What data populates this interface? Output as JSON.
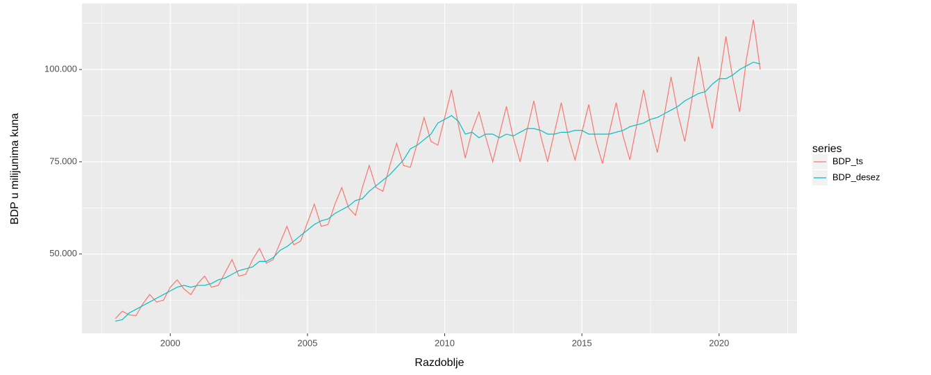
{
  "chart_data": {
    "type": "line",
    "xlabel": "Razdoblje",
    "ylabel": "BDP u milijunima kuna",
    "legend_title": "series",
    "legend": "right",
    "grid": true,
    "xlim": [
      1996.78,
      2022.84
    ],
    "ylim": [
      28500,
      117900
    ],
    "xticks": [
      2000,
      2005,
      2010,
      2015,
      2020
    ],
    "minor_xticks": [
      1997.5,
      2002.5,
      2007.5,
      2012.5,
      2017.5,
      2022.5
    ],
    "yticks": [
      {
        "value": 50000,
        "label": "50.000"
      },
      {
        "value": 75000,
        "label": "75.000"
      },
      {
        "value": 100000,
        "label": "100.000"
      }
    ],
    "minor_yticks": [
      37500,
      62500,
      87500,
      112500
    ],
    "x": [
      1998,
      1998.25,
      1998.5,
      1998.75,
      1999,
      1999.25,
      1999.5,
      1999.75,
      2000,
      2000.25,
      2000.5,
      2000.75,
      2001,
      2001.25,
      2001.5,
      2001.75,
      2002,
      2002.25,
      2002.5,
      2002.75,
      2003,
      2003.25,
      2003.5,
      2003.75,
      2004,
      2004.25,
      2004.5,
      2004.75,
      2005,
      2005.25,
      2005.5,
      2005.75,
      2006,
      2006.25,
      2006.5,
      2006.75,
      2007,
      2007.25,
      2007.5,
      2007.75,
      2008,
      2008.25,
      2008.5,
      2008.75,
      2009,
      2009.25,
      2009.5,
      2009.75,
      2010,
      2010.25,
      2010.5,
      2010.75,
      2011,
      2011.25,
      2011.5,
      2011.75,
      2012,
      2012.25,
      2012.5,
      2012.75,
      2013,
      2013.25,
      2013.5,
      2013.75,
      2014,
      2014.25,
      2014.5,
      2014.75,
      2015,
      2015.25,
      2015.5,
      2015.75,
      2016,
      2016.25,
      2016.5,
      2016.75,
      2017,
      2017.25,
      2017.5,
      2017.75,
      2018,
      2018.25,
      2018.5,
      2018.75,
      2019,
      2019.25,
      2019.5,
      2019.75,
      2020,
      2020.25,
      2020.5,
      2020.75,
      2021,
      2021.25,
      2021.5
    ],
    "series": [
      {
        "name": "BDP_ts",
        "color": "#F8766D",
        "values": [
          32500,
          34500,
          33500,
          33300,
          36500,
          39000,
          37000,
          37500,
          41000,
          43000,
          40500,
          39000,
          42000,
          44000,
          41000,
          41500,
          45000,
          48500,
          44000,
          44500,
          48500,
          51500,
          47500,
          48500,
          53000,
          57500,
          52500,
          53500,
          58500,
          63500,
          57500,
          58000,
          63500,
          68000,
          62500,
          60500,
          68000,
          74000,
          68000,
          67000,
          74000,
          80000,
          74000,
          73500,
          80000,
          87000,
          80500,
          79500,
          87000,
          94500,
          85000,
          76000,
          83500,
          88500,
          81500,
          75000,
          82500,
          90000,
          81500,
          75000,
          83500,
          91500,
          82000,
          75000,
          83000,
          91000,
          82000,
          75500,
          83000,
          90500,
          81000,
          74500,
          83000,
          91000,
          82000,
          75500,
          85000,
          94500,
          85000,
          77500,
          87500,
          98000,
          88000,
          80500,
          91500,
          103500,
          93000,
          84000,
          96500,
          109000,
          97500,
          88500,
          103000,
          113500,
          100000
        ]
      },
      {
        "name": "BDP_desez",
        "color": "#00BFC4",
        "values": [
          31800,
          32200,
          34000,
          35000,
          36000,
          37000,
          38000,
          39000,
          40000,
          41000,
          41500,
          41000,
          41500,
          41500,
          42000,
          43000,
          43500,
          44500,
          45500,
          46000,
          46500,
          48000,
          48000,
          49000,
          51000,
          52000,
          53500,
          55000,
          56500,
          58000,
          59000,
          59500,
          61000,
          62000,
          63000,
          64500,
          65000,
          67000,
          68500,
          70000,
          71500,
          73500,
          75500,
          78500,
          79500,
          81000,
          82500,
          85500,
          86500,
          87500,
          86000,
          82500,
          83000,
          81500,
          82500,
          82500,
          81500,
          82500,
          82000,
          83000,
          84000,
          84000,
          83500,
          82500,
          82500,
          83000,
          83000,
          83500,
          83500,
          82500,
          82500,
          82500,
          82500,
          83000,
          83500,
          84500,
          85000,
          85500,
          86500,
          87000,
          88000,
          89000,
          90000,
          91500,
          92500,
          93500,
          94000,
          96000,
          97500,
          97500,
          98500,
          100000,
          101000,
          102000,
          101500
        ]
      }
    ]
  }
}
